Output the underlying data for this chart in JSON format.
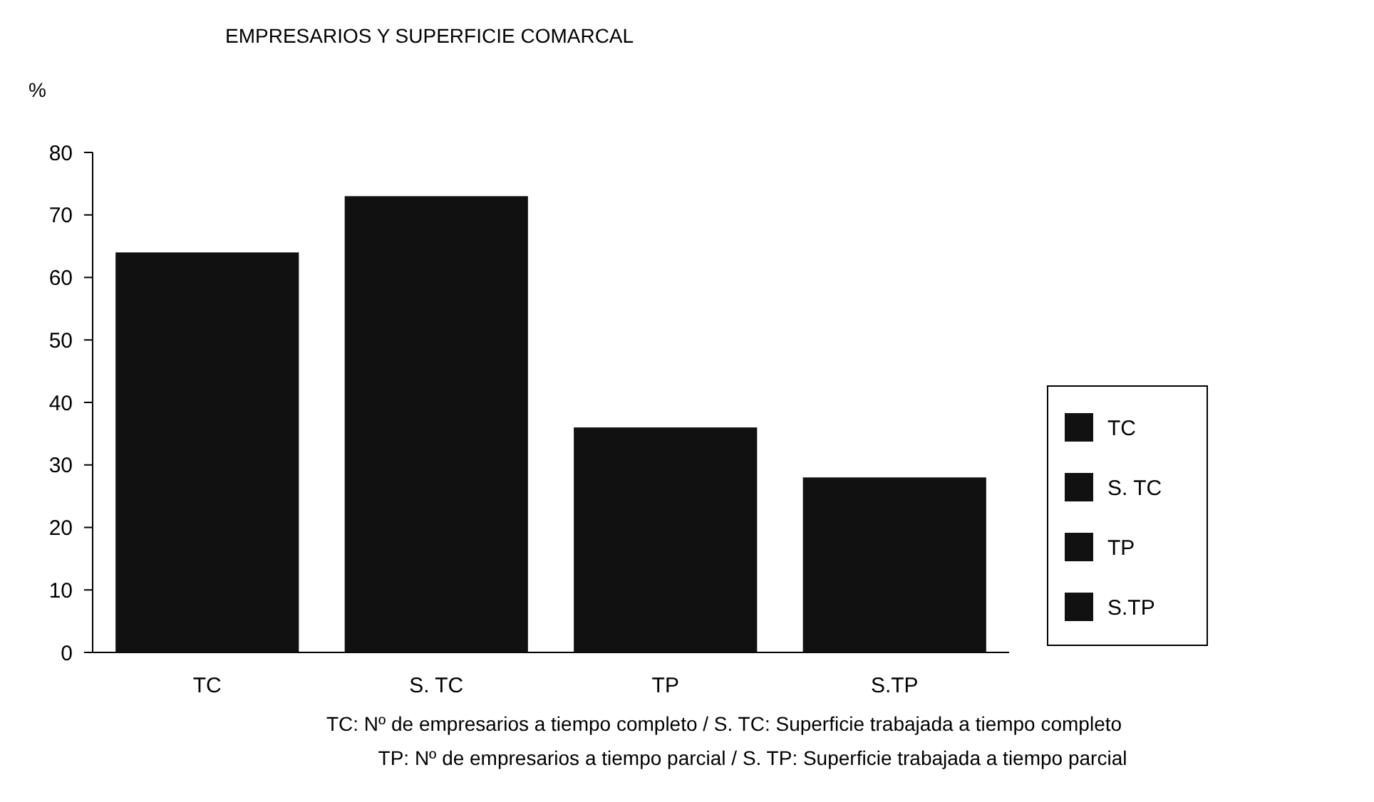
{
  "chart_data": {
    "type": "bar",
    "title": "EMPRESARIOS Y SUPERFICIE COMARCAL",
    "ylabel": "%",
    "stacked": true,
    "categories": [
      "TC",
      "S. TC",
      "TP",
      "S.TP"
    ],
    "series": [
      {
        "name": "TC",
        "color": "#111111",
        "values": [
          64,
          null,
          null,
          null
        ]
      },
      {
        "name": "S. TC",
        "color": "#111111",
        "values": [
          null,
          73,
          null,
          null
        ]
      },
      {
        "name": "TP",
        "color": "#111111",
        "values": [
          null,
          null,
          36,
          null
        ]
      },
      {
        "name": "S.TP",
        "color": "#111111",
        "values": [
          null,
          null,
          null,
          28
        ]
      }
    ],
    "ylim": [
      0,
      80
    ],
    "yticks": [
      0,
      10,
      20,
      30,
      40,
      50,
      60,
      70,
      80
    ],
    "grid": false,
    "legend": "right",
    "annotations": [
      "TC: Nº de empresarios a tiempo completo  /  S. TC: Superficie trabajada a tiempo completo",
      "TP: Nº de empresarios a tiempo parcial  /  S. TP: Superficie trabajada a tiempo parcial"
    ]
  }
}
